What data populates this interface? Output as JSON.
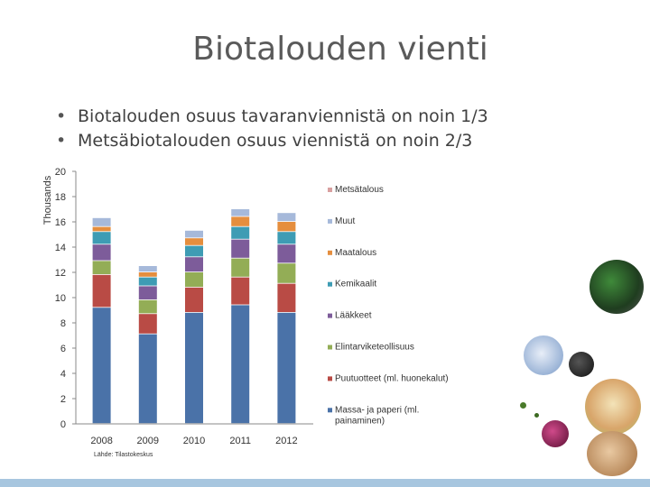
{
  "slide": {
    "title": "Biotalouden vienti",
    "bullets": [
      "Biotalouden osuus tavaranviennistä on noin 1/3",
      "Metsäbiotalouden osuus viennistä on noin 2/3"
    ],
    "source": "Lähde: Tilastokeskus"
  },
  "chart_data": {
    "type": "bar",
    "stacked": true,
    "categories": [
      "2008",
      "2009",
      "2010",
      "2011",
      "2012"
    ],
    "ylabel": "Thousands",
    "ylim": [
      0,
      20
    ],
    "yticks": [
      0,
      2,
      4,
      6,
      8,
      10,
      12,
      14,
      16,
      18,
      20
    ],
    "grid": false,
    "legend_position": "right",
    "series": [
      {
        "name": "Massa- ja paperi (ml. painaminen)",
        "color": "#4a72a8",
        "values": [
          9.2,
          7.1,
          8.8,
          9.4,
          8.8
        ]
      },
      {
        "name": "Puutuotteet (ml. huonekalut)",
        "color": "#b94b45",
        "values": [
          2.6,
          1.6,
          2.0,
          2.2,
          2.3
        ]
      },
      {
        "name": "Elintarviketeollisuus",
        "color": "#93ad56",
        "values": [
          1.1,
          1.1,
          1.2,
          1.5,
          1.6
        ]
      },
      {
        "name": "Lääkkeet",
        "color": "#7d5c9a",
        "values": [
          1.3,
          1.1,
          1.2,
          1.5,
          1.5
        ]
      },
      {
        "name": "Kemikaalit",
        "color": "#3e9cb4",
        "values": [
          1.0,
          0.7,
          0.9,
          1.0,
          1.0
        ]
      },
      {
        "name": "Maatalous",
        "color": "#e58e3e",
        "values": [
          0.4,
          0.4,
          0.6,
          0.8,
          0.8
        ]
      },
      {
        "name": "Muut",
        "color": "#a6b9da",
        "values": [
          0.7,
          0.5,
          0.6,
          0.6,
          0.7
        ]
      },
      {
        "name": "Metsätalous",
        "color": "#d9a0a0",
        "values": [
          0.0,
          0.0,
          0.0,
          0.0,
          0.0
        ]
      }
    ],
    "legend_order": [
      "Metsätalous",
      "Muut",
      "Maatalous",
      "Kemikaalit",
      "Lääkkeet",
      "Elintarviketeollisuus",
      "Puutuotteet (ml. huonekalut)",
      "Massa- ja paperi (ml. painaminen)"
    ]
  }
}
